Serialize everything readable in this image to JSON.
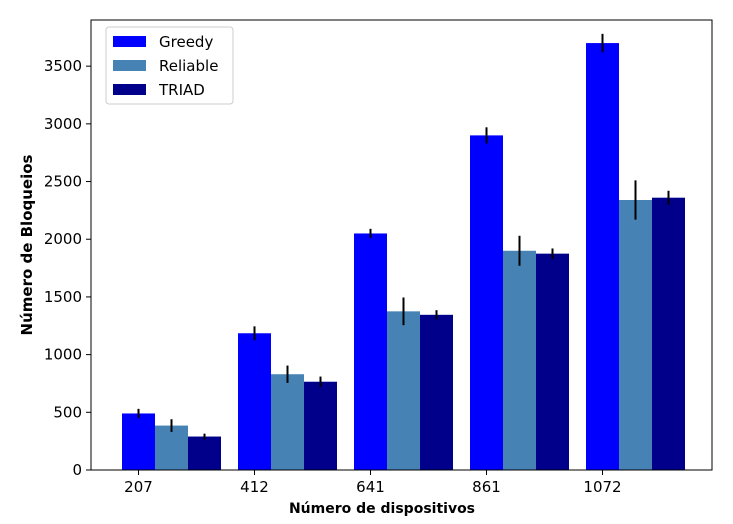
{
  "chart_data": {
    "type": "bar",
    "xlabel": "Número de dispositivos",
    "ylabel": "Número de Bloqueios",
    "categories": [
      "207",
      "412",
      "641",
      "861",
      "1072"
    ],
    "ylim": [
      0,
      3900
    ],
    "yticks": [
      0,
      500,
      1000,
      1500,
      2000,
      2500,
      3000,
      3500
    ],
    "grid": false,
    "legend_position": "top-left",
    "series": [
      {
        "name": "Greedy",
        "color": "#0000ff",
        "values": [
          490,
          1185,
          2050,
          2900,
          3700
        ],
        "errors": [
          40,
          60,
          40,
          70,
          80
        ]
      },
      {
        "name": "Reliable",
        "color": "#4682b4",
        "values": [
          385,
          830,
          1375,
          1900,
          2340
        ],
        "errors": [
          55,
          75,
          120,
          130,
          170
        ]
      },
      {
        "name": "TRIAD",
        "color": "#00008b",
        "values": [
          290,
          765,
          1345,
          1875,
          2360
        ],
        "errors": [
          25,
          45,
          40,
          45,
          60
        ]
      }
    ]
  }
}
